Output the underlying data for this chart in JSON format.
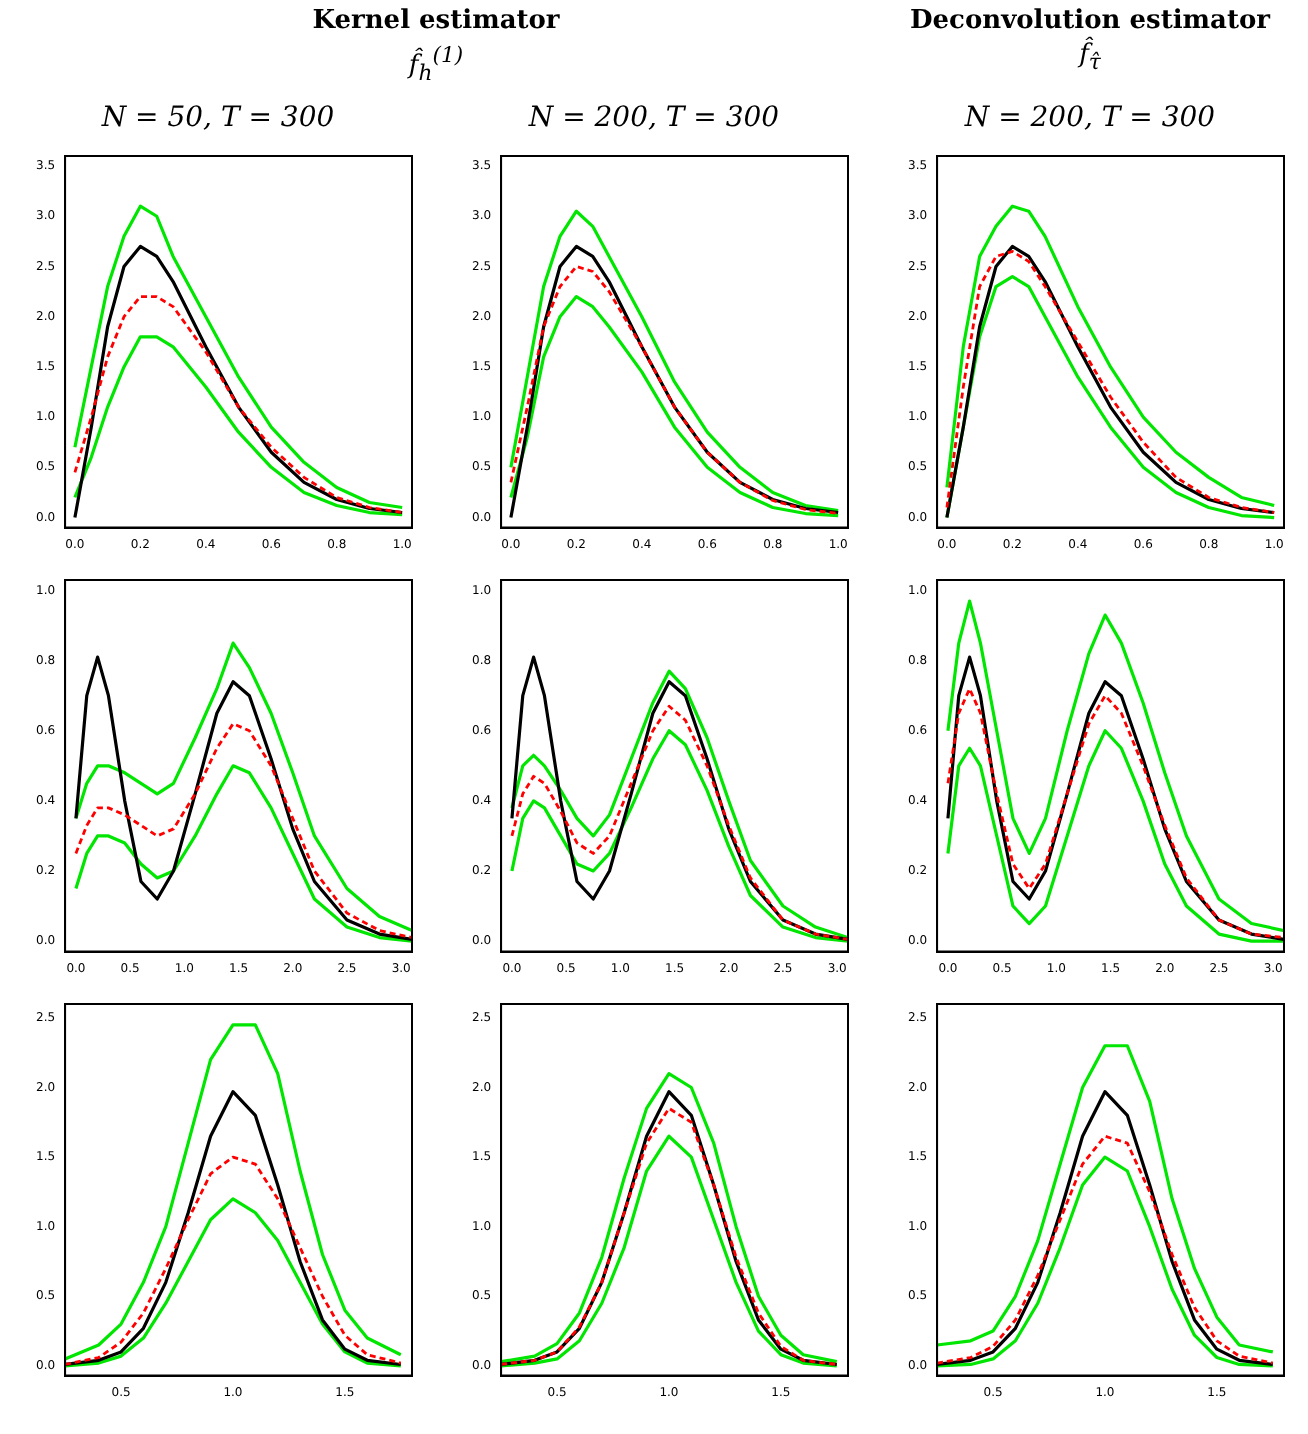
{
  "chart_data": [
    {
      "type": "line",
      "title": "N = 50, T = 300",
      "annotations": [
        "Kernel estimator",
        "f̂$_{h}$$^{(1)}$"
      ],
      "marker": "none",
      "x": [
        0,
        0.05,
        0.1,
        0.15,
        0.2,
        0.25,
        0.3,
        0.4,
        0.5,
        0.6,
        0.7,
        0.8,
        0.9,
        1.0
      ],
      "xlim": [
        -0.03,
        1.03
      ],
      "xticks": [
        {
          "value": 0,
          "label": "0.0"
        },
        0.2,
        0.4,
        0.6,
        0.8,
        {
          "value": 1,
          "label": "1.0"
        }
      ],
      "ylim": [
        -0.1,
        3.6
      ],
      "yticks": [
        {
          "value": 0,
          "label": "0.0"
        },
        0.5,
        {
          "value": 1,
          "label": "1.0"
        },
        1.5,
        {
          "value": 2,
          "label": "2.0"
        },
        2.5,
        {
          "value": 3,
          "label": "3.0"
        },
        3.5
      ],
      "series": [
        {
          "color": "#00e600",
          "values": [
            0.2,
            0.6,
            1.1,
            1.5,
            1.8,
            1.8,
            1.7,
            1.3,
            0.85,
            0.5,
            0.25,
            0.12,
            0.05,
            0.03
          ]
        },
        {
          "color": "#00e600",
          "values": [
            0.7,
            1.5,
            2.3,
            2.8,
            3.1,
            3.0,
            2.6,
            2.0,
            1.4,
            0.9,
            0.55,
            0.3,
            0.15,
            0.1
          ]
        },
        {
          "color": "#000000",
          "values": [
            0,
            0.9,
            1.9,
            2.5,
            2.7,
            2.6,
            2.35,
            1.7,
            1.1,
            0.65,
            0.35,
            0.18,
            0.09,
            0.05
          ]
        },
        {
          "color": "#ff0000",
          "line_style": "dashed",
          "values": [
            0.45,
            1.0,
            1.6,
            2.0,
            2.2,
            2.2,
            2.1,
            1.65,
            1.1,
            0.7,
            0.4,
            0.2,
            0.1,
            0.05
          ]
        }
      ]
    },
    {
      "type": "line",
      "title": "N = 200, T = 300",
      "marker": "none",
      "x": [
        0,
        0.05,
        0.1,
        0.15,
        0.2,
        0.25,
        0.3,
        0.4,
        0.5,
        0.6,
        0.7,
        0.8,
        0.9,
        1.0
      ],
      "xlim": [
        -0.03,
        1.03
      ],
      "xticks": [
        {
          "value": 0,
          "label": "0.0"
        },
        0.2,
        0.4,
        0.6,
        0.8,
        {
          "value": 1,
          "label": "1.0"
        }
      ],
      "ylim": [
        -0.1,
        3.6
      ],
      "yticks": [
        {
          "value": 0,
          "label": "0.0"
        },
        0.5,
        {
          "value": 1,
          "label": "1.0"
        },
        1.5,
        {
          "value": 2,
          "label": "2.0"
        },
        2.5,
        {
          "value": 3,
          "label": "3.0"
        },
        3.5
      ],
      "series": [
        {
          "color": "#00e600",
          "values": [
            0.2,
            0.8,
            1.6,
            2.0,
            2.2,
            2.1,
            1.9,
            1.45,
            0.9,
            0.5,
            0.25,
            0.1,
            0.04,
            0.02
          ]
        },
        {
          "color": "#00e600",
          "values": [
            0.5,
            1.4,
            2.3,
            2.8,
            3.05,
            2.9,
            2.6,
            2.0,
            1.35,
            0.85,
            0.5,
            0.25,
            0.12,
            0.07
          ]
        },
        {
          "color": "#000000",
          "values": [
            0,
            0.9,
            1.9,
            2.5,
            2.7,
            2.6,
            2.35,
            1.7,
            1.1,
            0.65,
            0.35,
            0.18,
            0.09,
            0.05
          ]
        },
        {
          "color": "#ff0000",
          "line_style": "dashed",
          "values": [
            0.35,
            1.1,
            1.9,
            2.3,
            2.5,
            2.45,
            2.25,
            1.7,
            1.1,
            0.65,
            0.35,
            0.17,
            0.08,
            0.04
          ]
        }
      ]
    },
    {
      "type": "line",
      "title": "N = 200, T = 300",
      "annotations": [
        "Deconvolution estimator",
        "f̂$_{τ̂}$"
      ],
      "marker": "none",
      "x": [
        0,
        0.05,
        0.1,
        0.15,
        0.2,
        0.25,
        0.3,
        0.4,
        0.5,
        0.6,
        0.7,
        0.8,
        0.9,
        1.0
      ],
      "xlim": [
        -0.03,
        1.03
      ],
      "xticks": [
        {
          "value": 0,
          "label": "0.0"
        },
        0.2,
        0.4,
        0.6,
        0.8,
        {
          "value": 1,
          "label": "1.0"
        }
      ],
      "ylim": [
        -0.1,
        3.6
      ],
      "yticks": [
        {
          "value": 0,
          "label": "0.0"
        },
        0.5,
        {
          "value": 1,
          "label": "1.0"
        },
        1.5,
        {
          "value": 2,
          "label": "2.0"
        },
        2.5,
        {
          "value": 3,
          "label": "3.0"
        },
        3.5
      ],
      "series": [
        {
          "color": "#00e600",
          "values": [
            0.0,
            0.9,
            1.8,
            2.3,
            2.4,
            2.3,
            2.0,
            1.4,
            0.9,
            0.5,
            0.25,
            0.1,
            0.02,
            0.0
          ]
        },
        {
          "color": "#00e600",
          "values": [
            0.3,
            1.7,
            2.6,
            2.9,
            3.1,
            3.05,
            2.8,
            2.1,
            1.5,
            1.0,
            0.65,
            0.4,
            0.2,
            0.12
          ]
        },
        {
          "color": "#000000",
          "values": [
            0,
            0.9,
            1.9,
            2.5,
            2.7,
            2.6,
            2.35,
            1.7,
            1.1,
            0.65,
            0.35,
            0.18,
            0.09,
            0.05
          ]
        },
        {
          "color": "#ff0000",
          "line_style": "dashed",
          "values": [
            0.1,
            1.3,
            2.3,
            2.6,
            2.65,
            2.55,
            2.3,
            1.75,
            1.2,
            0.75,
            0.4,
            0.2,
            0.1,
            0.05
          ]
        }
      ]
    },
    {
      "type": "line",
      "marker": "none",
      "x": [
        0,
        0.1,
        0.2,
        0.3,
        0.45,
        0.6,
        0.75,
        0.9,
        1.1,
        1.3,
        1.45,
        1.6,
        1.8,
        2.0,
        2.2,
        2.5,
        2.8,
        3.1
      ],
      "xlim": [
        -0.1,
        3.1
      ],
      "xticks": [
        {
          "value": 0,
          "label": "0.0"
        },
        0.5,
        {
          "value": 1,
          "label": "1.0"
        },
        1.5,
        {
          "value": 2,
          "label": "2.0"
        },
        2.5,
        {
          "value": 3,
          "label": "3.0"
        }
      ],
      "ylim": [
        -0.03,
        1.03
      ],
      "yticks": [
        {
          "value": 0,
          "label": "0.0"
        },
        0.2,
        0.4,
        0.6,
        0.8,
        {
          "value": 1,
          "label": "1.0"
        }
      ],
      "series": [
        {
          "color": "#00e600",
          "values": [
            0.15,
            0.25,
            0.3,
            0.3,
            0.28,
            0.22,
            0.18,
            0.2,
            0.3,
            0.42,
            0.5,
            0.48,
            0.38,
            0.25,
            0.12,
            0.04,
            0.01,
            0.0
          ]
        },
        {
          "color": "#00e600",
          "values": [
            0.35,
            0.45,
            0.5,
            0.5,
            0.48,
            0.45,
            0.42,
            0.45,
            0.58,
            0.72,
            0.85,
            0.78,
            0.65,
            0.48,
            0.3,
            0.15,
            0.07,
            0.03
          ]
        },
        {
          "color": "#000000",
          "values": [
            0.35,
            0.7,
            0.81,
            0.7,
            0.4,
            0.17,
            0.12,
            0.2,
            0.42,
            0.65,
            0.74,
            0.7,
            0.52,
            0.32,
            0.17,
            0.06,
            0.02,
            0.005
          ]
        },
        {
          "color": "#ff0000",
          "line_style": "dashed",
          "values": [
            0.25,
            0.33,
            0.38,
            0.38,
            0.36,
            0.33,
            0.3,
            0.32,
            0.42,
            0.55,
            0.62,
            0.6,
            0.5,
            0.35,
            0.2,
            0.08,
            0.03,
            0.01
          ]
        }
      ]
    },
    {
      "type": "line",
      "marker": "none",
      "x": [
        0,
        0.1,
        0.2,
        0.3,
        0.45,
        0.6,
        0.75,
        0.9,
        1.1,
        1.3,
        1.45,
        1.6,
        1.8,
        2.0,
        2.2,
        2.5,
        2.8,
        3.1
      ],
      "xlim": [
        -0.1,
        3.1
      ],
      "xticks": [
        {
          "value": 0,
          "label": "0.0"
        },
        0.5,
        {
          "value": 1,
          "label": "1.0"
        },
        1.5,
        {
          "value": 2,
          "label": "2.0"
        },
        2.5,
        {
          "value": 3,
          "label": "3.0"
        }
      ],
      "ylim": [
        -0.03,
        1.03
      ],
      "yticks": [
        {
          "value": 0,
          "label": "0.0"
        },
        0.2,
        0.4,
        0.6,
        0.8,
        {
          "value": 1,
          "label": "1.0"
        }
      ],
      "series": [
        {
          "color": "#00e600",
          "values": [
            0.2,
            0.35,
            0.4,
            0.38,
            0.3,
            0.22,
            0.2,
            0.25,
            0.38,
            0.52,
            0.6,
            0.56,
            0.43,
            0.27,
            0.13,
            0.04,
            0.01,
            0.0
          ]
        },
        {
          "color": "#00e600",
          "values": [
            0.38,
            0.5,
            0.53,
            0.5,
            0.43,
            0.35,
            0.3,
            0.36,
            0.52,
            0.68,
            0.77,
            0.72,
            0.58,
            0.4,
            0.23,
            0.1,
            0.04,
            0.01
          ]
        },
        {
          "color": "#000000",
          "values": [
            0.35,
            0.7,
            0.81,
            0.7,
            0.4,
            0.17,
            0.12,
            0.2,
            0.42,
            0.65,
            0.74,
            0.7,
            0.52,
            0.32,
            0.17,
            0.06,
            0.02,
            0.005
          ]
        },
        {
          "color": "#ff0000",
          "line_style": "dashed",
          "values": [
            0.3,
            0.42,
            0.47,
            0.45,
            0.37,
            0.28,
            0.25,
            0.3,
            0.45,
            0.6,
            0.67,
            0.63,
            0.5,
            0.33,
            0.18,
            0.06,
            0.02,
            0.005
          ]
        }
      ]
    },
    {
      "type": "line",
      "marker": "none",
      "x": [
        0,
        0.1,
        0.2,
        0.3,
        0.45,
        0.6,
        0.75,
        0.9,
        1.1,
        1.3,
        1.45,
        1.6,
        1.8,
        2.0,
        2.2,
        2.5,
        2.8,
        3.1
      ],
      "xlim": [
        -0.1,
        3.1
      ],
      "xticks": [
        {
          "value": 0,
          "label": "0.0"
        },
        0.5,
        {
          "value": 1,
          "label": "1.0"
        },
        1.5,
        {
          "value": 2,
          "label": "2.0"
        },
        2.5,
        {
          "value": 3,
          "label": "3.0"
        }
      ],
      "ylim": [
        -0.03,
        1.03
      ],
      "yticks": [
        {
          "value": 0,
          "label": "0.0"
        },
        0.2,
        0.4,
        0.6,
        0.8,
        {
          "value": 1,
          "label": "1.0"
        }
      ],
      "series": [
        {
          "color": "#00e600",
          "values": [
            0.25,
            0.5,
            0.55,
            0.5,
            0.3,
            0.1,
            0.05,
            0.1,
            0.3,
            0.5,
            0.6,
            0.55,
            0.4,
            0.22,
            0.1,
            0.02,
            0.0,
            0.0
          ]
        },
        {
          "color": "#00e600",
          "values": [
            0.6,
            0.85,
            0.97,
            0.85,
            0.6,
            0.35,
            0.25,
            0.35,
            0.6,
            0.82,
            0.93,
            0.85,
            0.68,
            0.48,
            0.3,
            0.12,
            0.05,
            0.03
          ]
        },
        {
          "color": "#000000",
          "values": [
            0.35,
            0.7,
            0.81,
            0.7,
            0.4,
            0.17,
            0.12,
            0.2,
            0.42,
            0.65,
            0.74,
            0.7,
            0.52,
            0.32,
            0.17,
            0.06,
            0.02,
            0.005
          ]
        },
        {
          "color": "#ff0000",
          "line_style": "dashed",
          "values": [
            0.45,
            0.65,
            0.72,
            0.65,
            0.42,
            0.22,
            0.15,
            0.22,
            0.42,
            0.62,
            0.7,
            0.65,
            0.5,
            0.33,
            0.18,
            0.06,
            0.02,
            0.01
          ]
        }
      ]
    },
    {
      "type": "line",
      "marker": "none",
      "x": [
        0.25,
        0.4,
        0.5,
        0.6,
        0.7,
        0.8,
        0.9,
        1.0,
        1.1,
        1.2,
        1.3,
        1.4,
        1.5,
        1.6,
        1.75
      ],
      "xlim": [
        0.25,
        1.8
      ],
      "xticks": [
        0.5,
        {
          "value": 1,
          "label": "1.0"
        },
        1.5
      ],
      "ylim": [
        -0.07,
        2.6
      ],
      "yticks": [
        {
          "value": 0,
          "label": "0.0"
        },
        0.5,
        {
          "value": 1,
          "label": "1.0"
        },
        1.5,
        {
          "value": 2,
          "label": "2.0"
        },
        2.5
      ],
      "series": [
        {
          "color": "#00e600",
          "values": [
            0.0,
            0.02,
            0.07,
            0.2,
            0.45,
            0.75,
            1.05,
            1.2,
            1.1,
            0.9,
            0.6,
            0.3,
            0.1,
            0.02,
            0.0
          ]
        },
        {
          "color": "#00e600",
          "values": [
            0.05,
            0.15,
            0.3,
            0.6,
            1.0,
            1.6,
            2.2,
            2.45,
            2.45,
            2.1,
            1.4,
            0.8,
            0.4,
            0.2,
            0.08
          ]
        },
        {
          "color": "#000000",
          "values": [
            0.01,
            0.04,
            0.1,
            0.27,
            0.6,
            1.1,
            1.65,
            1.97,
            1.8,
            1.3,
            0.75,
            0.33,
            0.12,
            0.04,
            0.01
          ]
        },
        {
          "color": "#ff0000",
          "line_style": "dashed",
          "values": [
            0.01,
            0.06,
            0.17,
            0.38,
            0.7,
            1.05,
            1.38,
            1.5,
            1.45,
            1.2,
            0.85,
            0.5,
            0.22,
            0.08,
            0.02
          ]
        }
      ]
    },
    {
      "type": "line",
      "marker": "none",
      "x": [
        0.25,
        0.4,
        0.5,
        0.6,
        0.7,
        0.8,
        0.9,
        1.0,
        1.1,
        1.2,
        1.3,
        1.4,
        1.5,
        1.6,
        1.75
      ],
      "xlim": [
        0.25,
        1.8
      ],
      "xticks": [
        0.5,
        {
          "value": 1,
          "label": "1.0"
        },
        1.5
      ],
      "ylim": [
        -0.07,
        2.6
      ],
      "yticks": [
        {
          "value": 0,
          "label": "0.0"
        },
        0.5,
        {
          "value": 1,
          "label": "1.0"
        },
        1.5,
        {
          "value": 2,
          "label": "2.0"
        },
        2.5
      ],
      "series": [
        {
          "color": "#00e600",
          "values": [
            0,
            0.02,
            0.05,
            0.18,
            0.45,
            0.85,
            1.4,
            1.65,
            1.5,
            1.05,
            0.6,
            0.25,
            0.08,
            0.02,
            0
          ]
        },
        {
          "color": "#00e600",
          "values": [
            0.03,
            0.07,
            0.16,
            0.38,
            0.78,
            1.35,
            1.85,
            2.1,
            2.0,
            1.6,
            1.0,
            0.5,
            0.22,
            0.08,
            0.03
          ]
        },
        {
          "color": "#000000",
          "values": [
            0.01,
            0.04,
            0.1,
            0.27,
            0.6,
            1.1,
            1.65,
            1.97,
            1.8,
            1.3,
            0.75,
            0.33,
            0.12,
            0.04,
            0.01
          ]
        },
        {
          "color": "#ff0000",
          "line_style": "dashed",
          "values": [
            0.01,
            0.04,
            0.1,
            0.28,
            0.6,
            1.1,
            1.6,
            1.85,
            1.75,
            1.3,
            0.78,
            0.38,
            0.14,
            0.04,
            0.01
          ]
        }
      ]
    },
    {
      "type": "line",
      "marker": "none",
      "x": [
        0.25,
        0.4,
        0.5,
        0.6,
        0.7,
        0.8,
        0.9,
        1.0,
        1.1,
        1.2,
        1.3,
        1.4,
        1.5,
        1.6,
        1.75
      ],
      "xlim": [
        0.25,
        1.8
      ],
      "xticks": [
        0.5,
        {
          "value": 1,
          "label": "1.0"
        },
        1.5
      ],
      "ylim": [
        -0.07,
        2.6
      ],
      "yticks": [
        {
          "value": 0,
          "label": "0.0"
        },
        0.5,
        {
          "value": 1,
          "label": "1.0"
        },
        1.5,
        {
          "value": 2,
          "label": "2.0"
        },
        2.5
      ],
      "series": [
        {
          "color": "#00e600",
          "values": [
            0,
            0.01,
            0.05,
            0.18,
            0.45,
            0.85,
            1.3,
            1.5,
            1.4,
            1.0,
            0.55,
            0.22,
            0.06,
            0.01,
            0
          ]
        },
        {
          "color": "#00e600",
          "values": [
            0.15,
            0.18,
            0.25,
            0.5,
            0.9,
            1.45,
            2.0,
            2.3,
            2.3,
            1.9,
            1.2,
            0.7,
            0.35,
            0.15,
            0.1
          ]
        },
        {
          "color": "#000000",
          "values": [
            0.01,
            0.04,
            0.1,
            0.27,
            0.6,
            1.1,
            1.65,
            1.97,
            1.8,
            1.3,
            0.75,
            0.33,
            0.12,
            0.04,
            0.01
          ]
        },
        {
          "color": "#ff0000",
          "line_style": "dashed",
          "values": [
            0.02,
            0.06,
            0.14,
            0.33,
            0.65,
            1.05,
            1.45,
            1.65,
            1.6,
            1.25,
            0.8,
            0.42,
            0.18,
            0.07,
            0.02
          ]
        }
      ]
    }
  ]
}
